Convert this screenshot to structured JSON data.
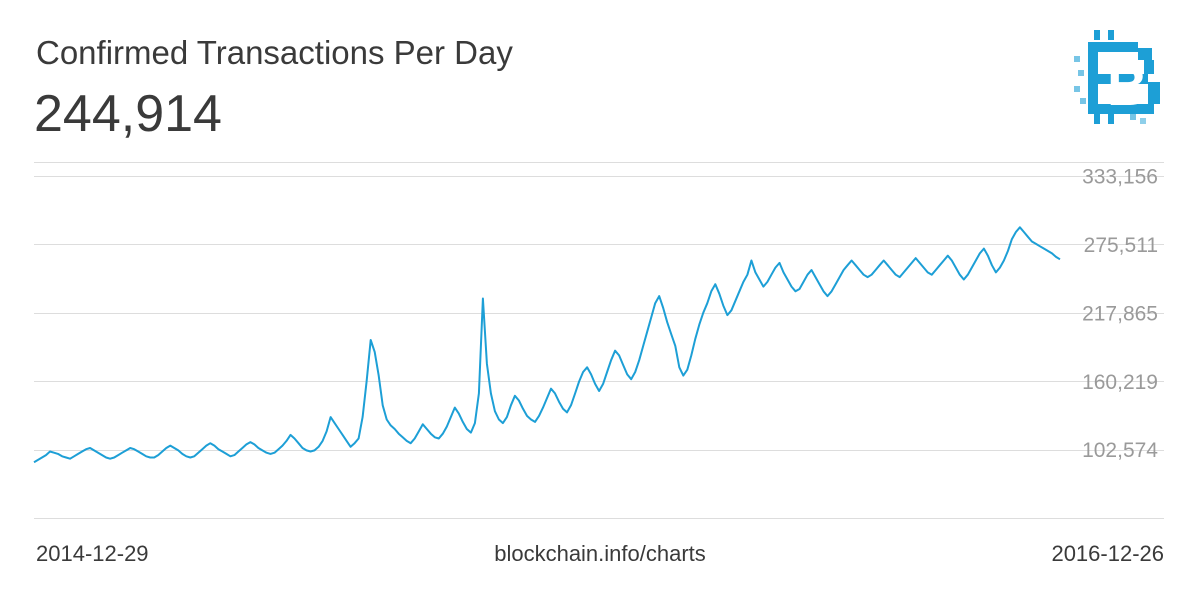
{
  "header": {
    "title": "Confirmed Transactions Per Day",
    "value": "244,914"
  },
  "footer": {
    "start_label": "2014-12-29",
    "source": "blockchain.info/charts",
    "end_label": "2016-12-26"
  },
  "logo": {
    "icon": "bitcoin-logo-icon",
    "glyph": "B"
  },
  "colors": {
    "line": "#1d9fd6",
    "grid": "#dddddd",
    "tick": "#9a9a9a",
    "text": "#3a3a3a",
    "logo": "#1d9fd6"
  },
  "chart_data": {
    "type": "line",
    "title": "Confirmed Transactions Per Day",
    "x_start": "2014-12-29",
    "x_end": "2016-12-26",
    "y_ticks": [
      102574,
      160219,
      217865,
      275511,
      333156
    ],
    "ylim": [
      45000,
      345000
    ],
    "grid": true,
    "series": [
      {
        "values": [
          92000,
          94000,
          96000,
          98000,
          101000,
          100000,
          99000,
          97000,
          96000,
          95000,
          97000,
          99000,
          101000,
          103000,
          104000,
          102000,
          100000,
          98000,
          96000,
          95000,
          96000,
          98000,
          100000,
          102000,
          104000,
          103000,
          101000,
          99000,
          97000,
          96000,
          96000,
          98000,
          101000,
          104000,
          106000,
          104000,
          102000,
          99000,
          97000,
          96000,
          97000,
          100000,
          103000,
          106000,
          108000,
          106000,
          103000,
          101000,
          99000,
          97000,
          98000,
          101000,
          104000,
          107000,
          109000,
          107000,
          104000,
          102000,
          100000,
          99000,
          100000,
          103000,
          106000,
          110000,
          115000,
          112000,
          108000,
          104000,
          102000,
          101000,
          102000,
          105000,
          110000,
          118000,
          130000,
          125000,
          120000,
          115000,
          110000,
          105000,
          108000,
          112000,
          130000,
          160000,
          195000,
          185000,
          165000,
          140000,
          128000,
          123000,
          120000,
          116000,
          113000,
          110000,
          108000,
          112000,
          118000,
          124000,
          120000,
          116000,
          113000,
          112000,
          116000,
          122000,
          130000,
          138000,
          133000,
          126000,
          120000,
          117000,
          125000,
          150000,
          230000,
          175000,
          150000,
          135000,
          128000,
          125000,
          130000,
          140000,
          148000,
          144000,
          137000,
          131000,
          128000,
          126000,
          131000,
          138000,
          146000,
          154000,
          150000,
          143000,
          137000,
          134000,
          140000,
          150000,
          160000,
          168000,
          172000,
          166000,
          158000,
          152000,
          158000,
          168000,
          178000,
          186000,
          182000,
          174000,
          166000,
          162000,
          168000,
          178000,
          190000,
          202000,
          214000,
          226000,
          232000,
          222000,
          210000,
          200000,
          190000,
          172000,
          165000,
          170000,
          182000,
          196000,
          208000,
          218000,
          226000,
          236000,
          242000,
          234000,
          224000,
          216000,
          220000,
          228000,
          236000,
          244000,
          250000,
          262000,
          252000,
          246000,
          240000,
          244000,
          250000,
          256000,
          260000,
          252000,
          246000,
          240000,
          236000,
          238000,
          244000,
          250000,
          254000,
          248000,
          242000,
          236000,
          232000,
          236000,
          242000,
          248000,
          254000,
          258000,
          262000,
          258000,
          254000,
          250000,
          248000,
          250000,
          254000,
          258000,
          262000,
          258000,
          254000,
          250000,
          248000,
          252000,
          256000,
          260000,
          264000,
          260000,
          256000,
          252000,
          250000,
          254000,
          258000,
          262000,
          266000,
          262000,
          256000,
          250000,
          246000,
          250000,
          256000,
          262000,
          268000,
          272000,
          266000,
          258000,
          252000,
          256000,
          262000,
          270000,
          280000,
          286000,
          290000,
          286000,
          282000,
          278000,
          276000,
          274000,
          272000,
          270000,
          268000,
          265000,
          263000
        ]
      }
    ]
  }
}
